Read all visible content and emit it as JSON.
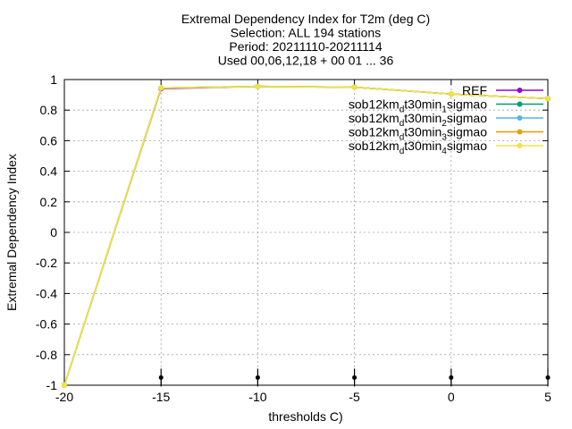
{
  "chart_data": {
    "type": "line",
    "title_lines": [
      "Extremal Dependency Index  for T2m (deg C)",
      "Selection: ALL    194 stations",
      "Period: 20211110-20211114",
      "Used 00,06,12,18 + 00 01 ... 36"
    ],
    "xlabel": "thresholds C)",
    "ylabel": "Extremal Dependency Index",
    "xlim": [
      -20,
      5
    ],
    "ylim": [
      -1,
      1
    ],
    "xticks": [
      -20,
      -15,
      -10,
      -5,
      0,
      5
    ],
    "yticks": [
      -1,
      -0.8,
      -0.6,
      -0.4,
      -0.2,
      0,
      0.2,
      0.4,
      0.6,
      0.8,
      1
    ],
    "grid": true,
    "legend_position": "top-right",
    "x": [
      -20,
      -15,
      -10,
      -5,
      0,
      5
    ],
    "series": [
      {
        "name": "REF",
        "name_parts": [
          {
            "t": "REF"
          }
        ],
        "color": "#9400d3",
        "values": [
          -1,
          0.94,
          0.955,
          0.95,
          0.905,
          0.875
        ]
      },
      {
        "name": "sob12km_dt30min_1sigmao",
        "name_parts": [
          {
            "t": "sob12km"
          },
          {
            "t": "d",
            "sub": true
          },
          {
            "t": "t30min"
          },
          {
            "t": "1",
            "sub": true
          },
          {
            "t": "sigmao"
          }
        ],
        "color": "#009e73",
        "values": [
          -1,
          0.945,
          0.955,
          0.95,
          0.905,
          0.875
        ]
      },
      {
        "name": "sob12km_dt30min_2sigmao",
        "name_parts": [
          {
            "t": "sob12km"
          },
          {
            "t": "d",
            "sub": true
          },
          {
            "t": "t30min"
          },
          {
            "t": "2",
            "sub": true
          },
          {
            "t": "sigmao"
          }
        ],
        "color": "#56b4e9",
        "values": [
          -1,
          0.945,
          0.955,
          0.95,
          0.905,
          0.875
        ]
      },
      {
        "name": "sob12km_dt30min_3sigmao",
        "name_parts": [
          {
            "t": "sob12km"
          },
          {
            "t": "d",
            "sub": true
          },
          {
            "t": "t30min"
          },
          {
            "t": "3",
            "sub": true
          },
          {
            "t": "sigmao"
          }
        ],
        "color": "#e69f00",
        "values": [
          -1,
          0.945,
          0.955,
          0.95,
          0.905,
          0.875
        ]
      },
      {
        "name": "sob12km_dt30min_4sigmao",
        "name_parts": [
          {
            "t": "sob12km"
          },
          {
            "t": "d",
            "sub": true
          },
          {
            "t": "t30min"
          },
          {
            "t": "4",
            "sub": true
          },
          {
            "t": "sigmao"
          }
        ],
        "color": "#f0e442",
        "values": [
          -1,
          0.945,
          0.955,
          0.95,
          0.905,
          0.875
        ]
      }
    ]
  }
}
